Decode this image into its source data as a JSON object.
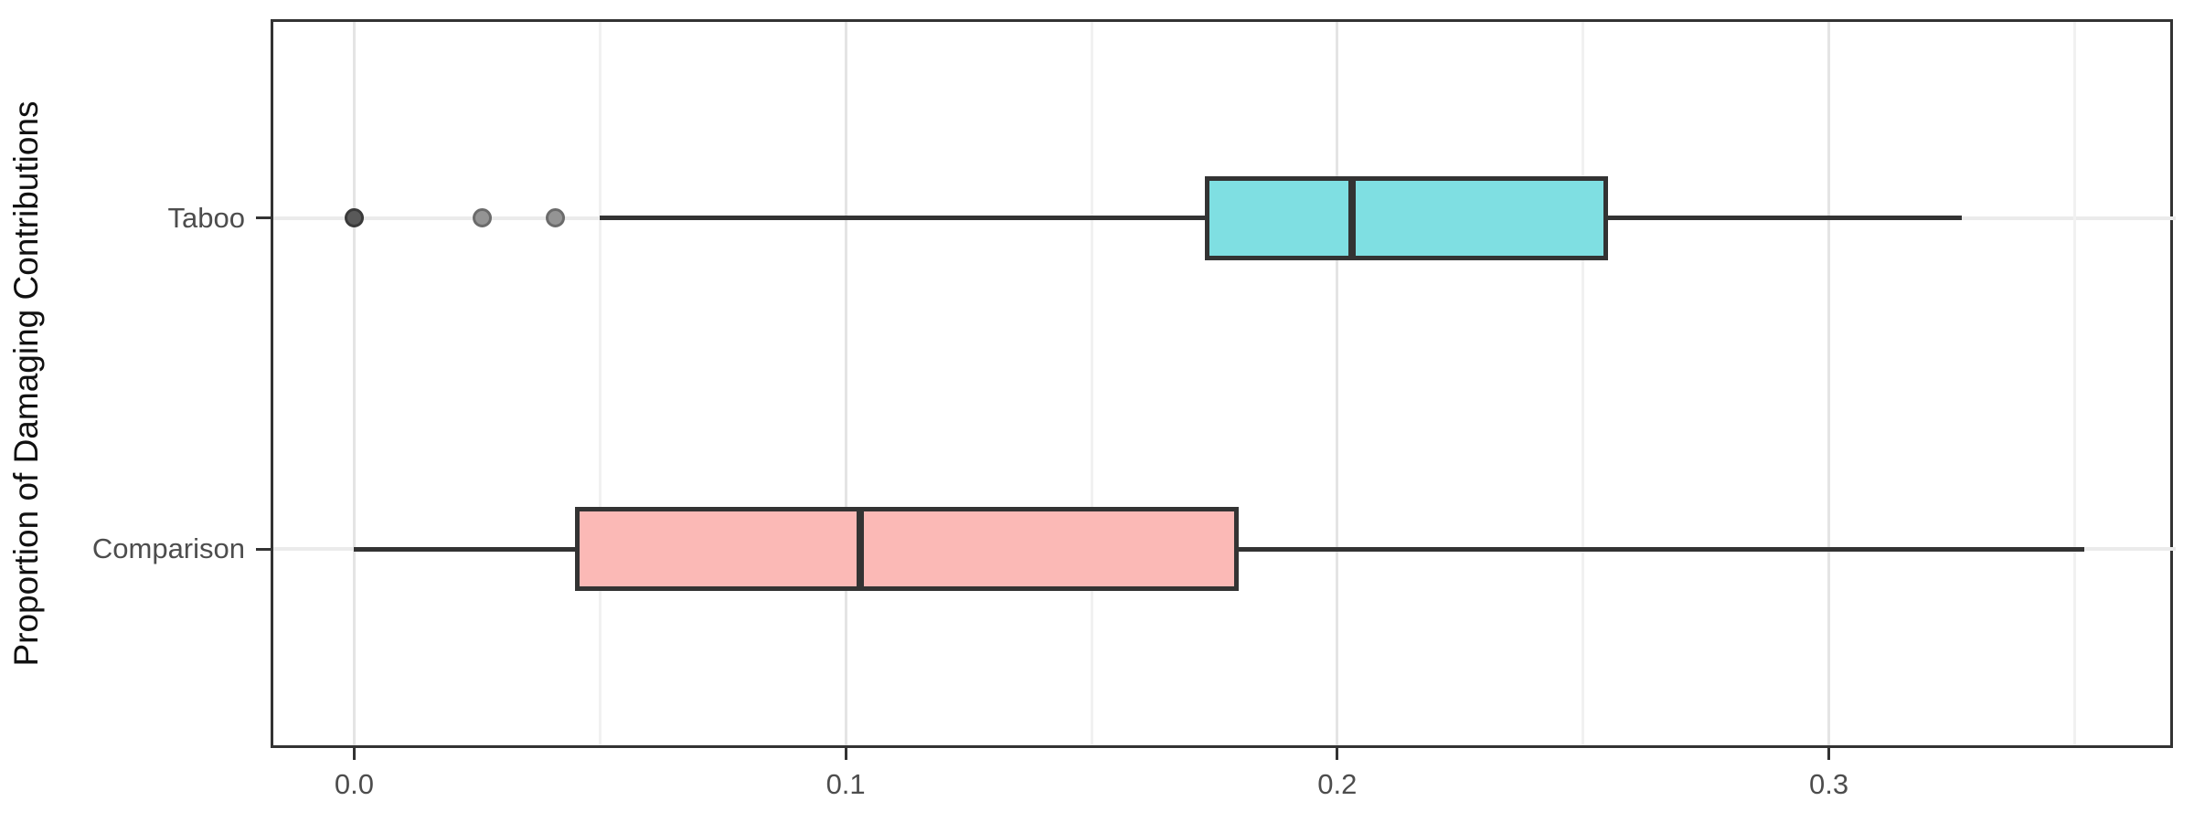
{
  "figure": {
    "y_axis_title": "Proportion of Damaging Contributions"
  },
  "chart_data": {
    "type": "boxplot",
    "orientation": "horizontal",
    "title": "",
    "xlabel": "",
    "ylabel": "Proportion of Damaging Contributions",
    "categories": [
      "Taboo",
      "Comparison"
    ],
    "x_axis": {
      "major_ticks": [
        0.0,
        0.1,
        0.2,
        0.3
      ],
      "major_tick_labels": [
        "0.0",
        "0.1",
        "0.2",
        "0.3"
      ],
      "minor_ticks": [
        0.05,
        0.15,
        0.25,
        0.35
      ],
      "lim": [
        -0.017,
        0.37
      ]
    },
    "grid": true,
    "legend": false,
    "series": [
      {
        "name": "Taboo",
        "fill": "#7FDFE2",
        "whisker_min": 0.05,
        "q1": 0.173,
        "median": 0.203,
        "q3": 0.255,
        "whisker_max": 0.327,
        "outliers": [
          {
            "value": 0.0,
            "fill": "#595959",
            "stroke": "#3a3a3a"
          },
          {
            "value": 0.026,
            "fill": "#949494",
            "stroke": "#6b6b6b"
          },
          {
            "value": 0.041,
            "fill": "#949494",
            "stroke": "#6b6b6b"
          }
        ]
      },
      {
        "name": "Comparison",
        "fill": "#FBB9B6",
        "whisker_min": 0.0,
        "q1": 0.045,
        "median": 0.103,
        "q3": 0.18,
        "whisker_max": 0.352,
        "outliers": []
      }
    ],
    "colors": {
      "stroke": "#333333",
      "grid_major": "#e4e4e4",
      "grid_minor": "#f1f1f1",
      "grid_row": "#ebebeb",
      "tick_mark": "#333333",
      "tick_text": "#4d4d4d",
      "axis_title_text": "#111111",
      "panel_border": "#333333",
      "background": "#ffffff"
    }
  }
}
